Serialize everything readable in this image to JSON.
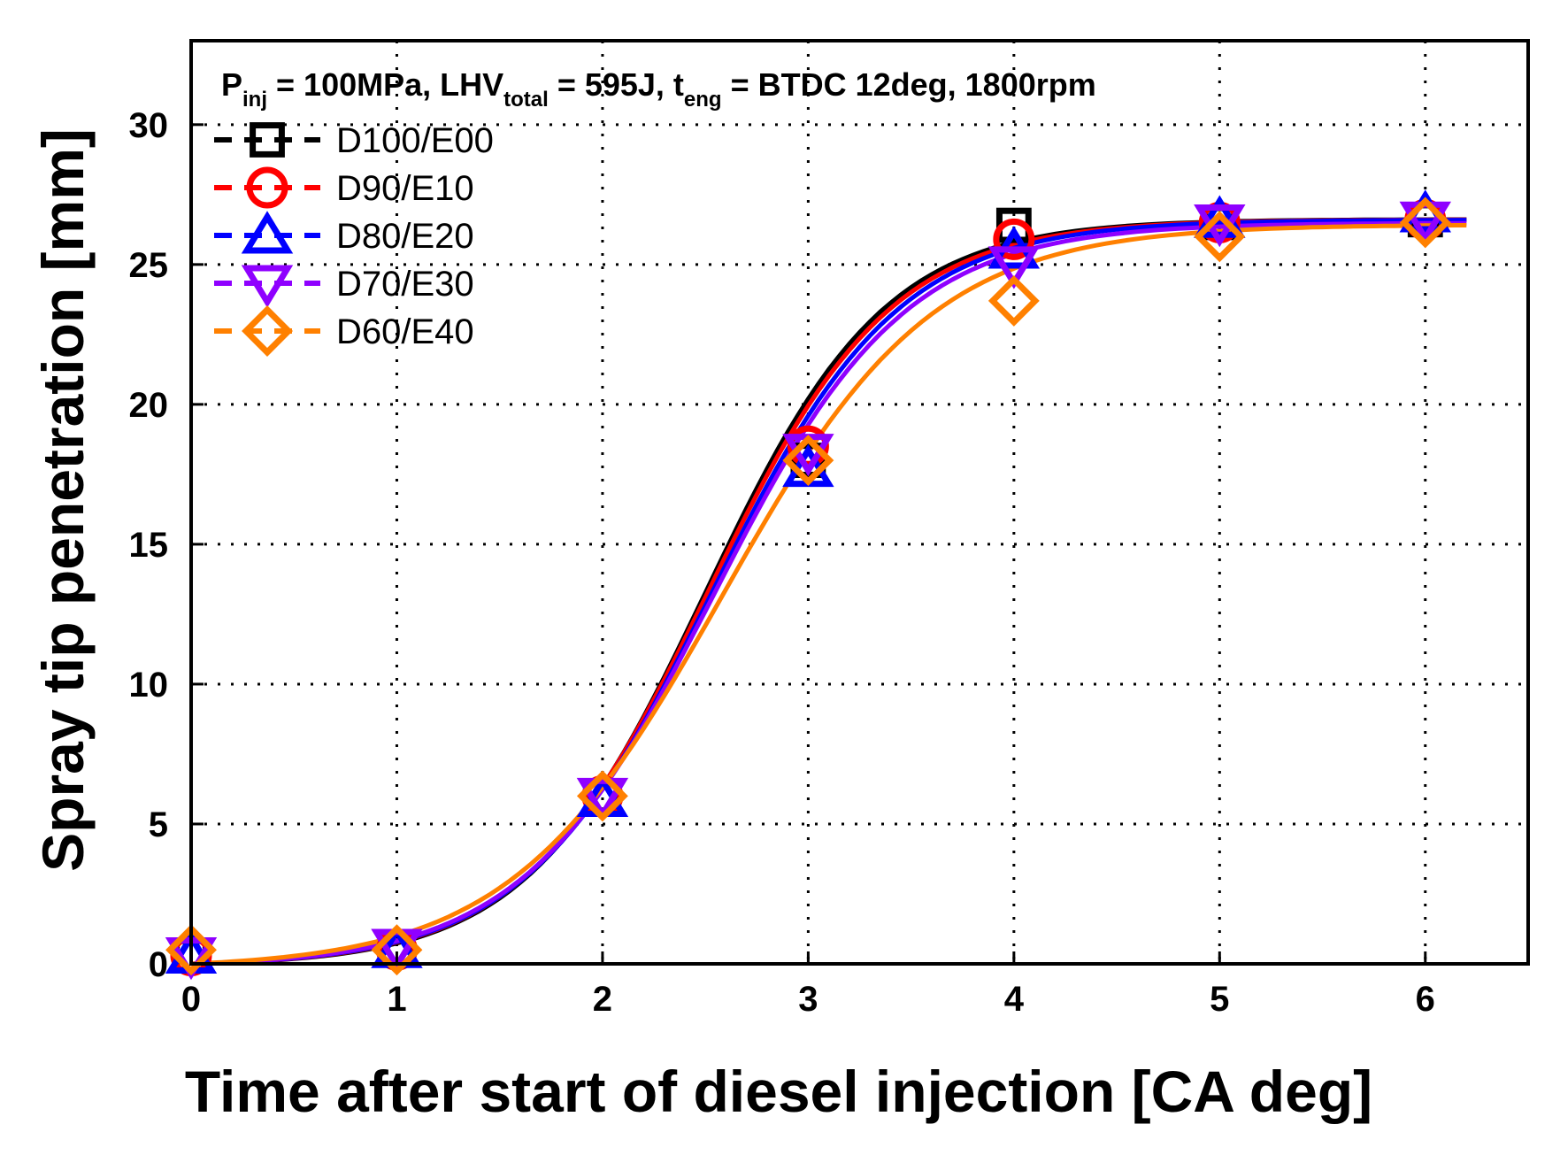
{
  "chart_data": {
    "type": "line",
    "title": "",
    "annotation": {
      "p_main": "P",
      "p_sub": "inj",
      "p_rest": " = 100MPa, LHV",
      "lhv_sub": "total",
      "lhv_rest": " = 595J, t",
      "t_sub": "eng",
      "t_rest": " = BTDC 12deg, 1800rpm"
    },
    "xlabel": "Time after start of diesel injection [CA deg]",
    "ylabel": "Spray tip penetration [mm]",
    "xlim": [
      0,
      6.5
    ],
    "ylim": [
      0,
      33
    ],
    "xticks": [
      0,
      1,
      2,
      3,
      4,
      5,
      6
    ],
    "yticks": [
      0,
      5,
      10,
      15,
      20,
      25,
      30
    ],
    "grid": true,
    "legend_position": "top-left",
    "x": [
      0,
      1,
      2,
      3,
      4,
      5,
      6
    ],
    "series": [
      {
        "name": "D100/E00",
        "marker": "square",
        "color": "#000000",
        "values": [
          0.3,
          0.5,
          6.0,
          18.0,
          26.4,
          26.5,
          26.6
        ]
      },
      {
        "name": "D90/E10",
        "marker": "circle",
        "color": "#ff0000",
        "values": [
          0.3,
          0.5,
          6.0,
          18.5,
          25.9,
          26.5,
          26.6
        ]
      },
      {
        "name": "D80/E20",
        "marker": "triangle-up",
        "color": "#0000ff",
        "values": [
          0.3,
          0.5,
          5.9,
          17.7,
          25.5,
          26.6,
          26.8
        ]
      },
      {
        "name": "D70/E30",
        "marker": "triangle-down",
        "color": "#8f00ff",
        "values": [
          0.3,
          0.6,
          6.0,
          18.3,
          25.0,
          26.5,
          26.6
        ]
      },
      {
        "name": "D60/E40",
        "marker": "diamond",
        "color": "#ff8000",
        "values": [
          0.5,
          0.5,
          6.0,
          18.0,
          23.7,
          26.0,
          26.5
        ]
      }
    ]
  }
}
